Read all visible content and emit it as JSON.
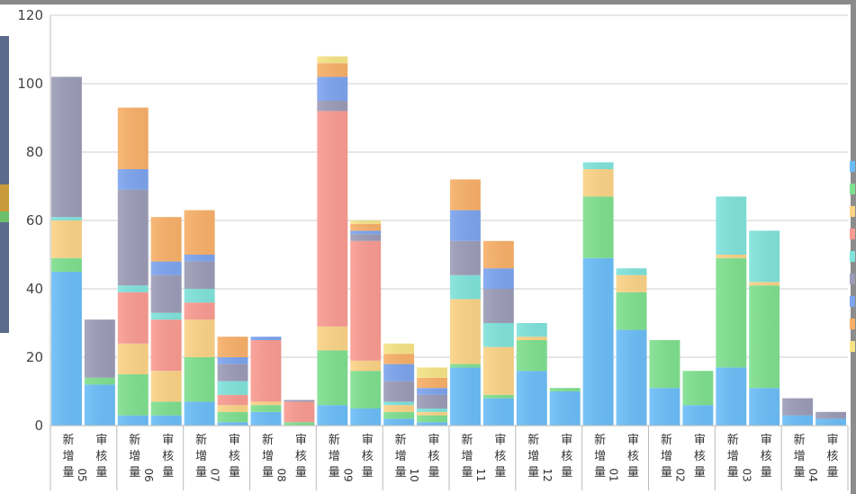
{
  "chart_data": {
    "type": "bar",
    "stacked": true,
    "ylim": [
      0,
      120
    ],
    "yticks": [
      0,
      20,
      40,
      60,
      80,
      100,
      120
    ],
    "grid": true,
    "groups": [
      "05",
      "06",
      "07",
      "08",
      "09",
      "10",
      "11",
      "12",
      "01",
      "02",
      "03",
      "04"
    ],
    "bar_labels": [
      "新增量",
      "审核量"
    ],
    "series_colors": [
      "#6bbdf7",
      "#7fe08f",
      "#fbd386",
      "#f99b92",
      "#80e3db",
      "#9c9cb8",
      "#7da4ee",
      "#f8b069",
      "#f6e486"
    ],
    "bars": [
      {
        "group": "05",
        "label": "新增量",
        "values": [
          45,
          4,
          11,
          0,
          1,
          41,
          0,
          0,
          0
        ]
      },
      {
        "group": "05",
        "label": "审核量",
        "values": [
          12,
          2,
          0,
          0,
          0,
          17,
          0,
          0,
          0
        ]
      },
      {
        "group": "06",
        "label": "新增量",
        "values": [
          3,
          12,
          9,
          15,
          2,
          28,
          6,
          18,
          0
        ]
      },
      {
        "group": "06",
        "label": "审核量",
        "values": [
          3,
          4,
          9,
          15,
          2,
          11,
          4,
          13,
          0
        ]
      },
      {
        "group": "07",
        "label": "新增量",
        "values": [
          7,
          13,
          11,
          5,
          4,
          8,
          2,
          13,
          0
        ]
      },
      {
        "group": "07",
        "label": "审核量",
        "values": [
          1,
          3,
          2,
          3,
          4,
          5,
          2,
          6,
          0
        ]
      },
      {
        "group": "08",
        "label": "新增量",
        "values": [
          4,
          2,
          1,
          18,
          0,
          0,
          1,
          0,
          0
        ]
      },
      {
        "group": "08",
        "label": "审核量",
        "values": [
          0,
          1,
          0,
          6,
          0,
          0.5,
          0,
          0,
          0
        ]
      },
      {
        "group": "09",
        "label": "新增量",
        "values": [
          6,
          16,
          7,
          63,
          0,
          3,
          7,
          4,
          2
        ]
      },
      {
        "group": "09",
        "label": "审核量",
        "values": [
          5,
          11,
          3,
          35,
          0,
          2,
          1,
          2,
          1
        ]
      },
      {
        "group": "10",
        "label": "新增量",
        "values": [
          2,
          2,
          2,
          0,
          1,
          6,
          5,
          3,
          3
        ]
      },
      {
        "group": "10",
        "label": "审核量",
        "values": [
          1,
          2,
          1,
          0,
          1,
          4,
          2,
          3,
          3
        ]
      },
      {
        "group": "11",
        "label": "新增量",
        "values": [
          17,
          1,
          19,
          0,
          7,
          10,
          9,
          9,
          0
        ]
      },
      {
        "group": "11",
        "label": "审核量",
        "values": [
          8,
          1,
          14,
          0,
          7,
          10,
          6,
          8,
          0
        ]
      },
      {
        "group": "12",
        "label": "新增量",
        "values": [
          16,
          9,
          1,
          0,
          4,
          0,
          0,
          0,
          0
        ]
      },
      {
        "group": "12",
        "label": "审核量",
        "values": [
          10,
          1,
          0,
          0,
          0,
          0,
          0,
          0,
          0
        ]
      },
      {
        "group": "01",
        "label": "新增量",
        "values": [
          49,
          18,
          8,
          0,
          2,
          0,
          0,
          0,
          0
        ]
      },
      {
        "group": "01",
        "label": "审核量",
        "values": [
          28,
          11,
          5,
          0,
          2,
          0,
          0,
          0,
          0
        ]
      },
      {
        "group": "02",
        "label": "新增量",
        "values": [
          11,
          14,
          0,
          0,
          0,
          0,
          0,
          0,
          0
        ]
      },
      {
        "group": "02",
        "label": "审核量",
        "values": [
          6,
          10,
          0,
          0,
          0,
          0,
          0,
          0,
          0
        ]
      },
      {
        "group": "03",
        "label": "新增量",
        "values": [
          17,
          32,
          1,
          0,
          17,
          0,
          0,
          0,
          0
        ]
      },
      {
        "group": "03",
        "label": "审核量",
        "values": [
          11,
          30,
          1,
          0,
          15,
          0,
          0,
          0,
          0
        ]
      },
      {
        "group": "04",
        "label": "新增量",
        "values": [
          3,
          0,
          0,
          0,
          0,
          5,
          0,
          0,
          0
        ]
      },
      {
        "group": "04",
        "label": "审核量",
        "values": [
          2,
          0,
          0,
          0,
          0,
          2,
          0,
          0,
          0
        ]
      }
    ]
  }
}
